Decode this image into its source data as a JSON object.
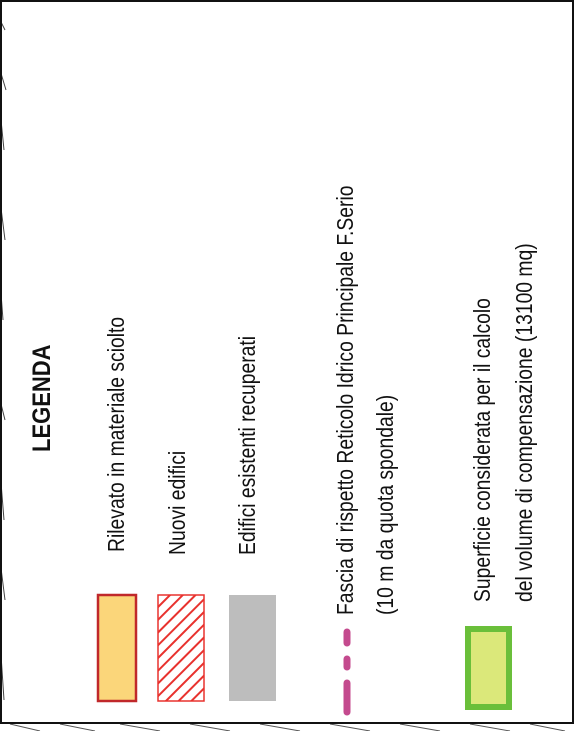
{
  "legend": {
    "title": "LEGENDA",
    "items": [
      {
        "label": "Rilevato in materiale sciolto",
        "fill": "#fbd67a",
        "stroke": "#c0282a"
      },
      {
        "label": "Nuovi edifici",
        "hatch": "#e8322e"
      },
      {
        "label": "Edifici esistenti recuperati",
        "fill": "#bdbdbd"
      },
      {
        "line1": "Fascia di rispetto Reticolo Idrico Principale F.Serio",
        "line2": "(10 m da quota spondale)",
        "color": "#c44a8e"
      },
      {
        "line1": "Superficie considerata per il calcolo",
        "line2": "del volume di compensazione (13100 mq)",
        "fill": "#dbe87a",
        "stroke": "#6abf3a"
      }
    ]
  }
}
